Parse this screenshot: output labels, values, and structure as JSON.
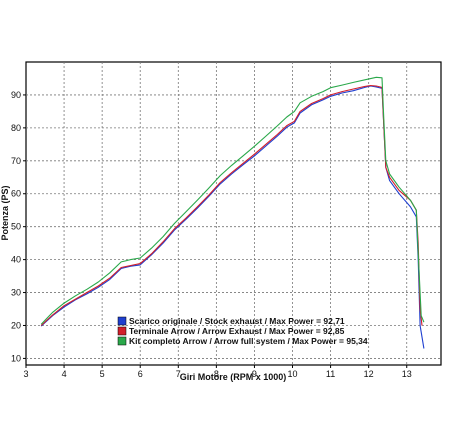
{
  "chart_data": {
    "type": "line",
    "xlabel": "Giri Motore (RPM x 1000)",
    "ylabel": "Potenza (PS)",
    "xlim": [
      3,
      13.9
    ],
    "ylim": [
      8,
      100
    ],
    "xticks": [
      3,
      4,
      5,
      6,
      7,
      8,
      9,
      10,
      11,
      12,
      13
    ],
    "yticks": [
      10,
      20,
      30,
      40,
      50,
      60,
      70,
      80,
      90
    ],
    "grid": true,
    "legend_position": "bottom-left",
    "series": [
      {
        "name": "Scarico originale / Stock exhaust / Max Power = 92,71",
        "color": "#1f3fd0",
        "points": [
          [
            3.4,
            19.8
          ],
          [
            3.7,
            23
          ],
          [
            4,
            25.6
          ],
          [
            4.3,
            27.8
          ],
          [
            4.6,
            29.6
          ],
          [
            4.9,
            31.6
          ],
          [
            5.2,
            34
          ],
          [
            5.5,
            37.3
          ],
          [
            5.75,
            38
          ],
          [
            6,
            38.4
          ],
          [
            6.3,
            41.5
          ],
          [
            6.6,
            45
          ],
          [
            6.9,
            49
          ],
          [
            7.2,
            52.2
          ],
          [
            7.5,
            55.6
          ],
          [
            7.8,
            59.2
          ],
          [
            8.1,
            63
          ],
          [
            8.4,
            66
          ],
          [
            8.7,
            68.8
          ],
          [
            9,
            71.5
          ],
          [
            9.3,
            74.5
          ],
          [
            9.6,
            77.5
          ],
          [
            9.85,
            80.2
          ],
          [
            10.05,
            81.5
          ],
          [
            10.2,
            84.5
          ],
          [
            10.5,
            87
          ],
          [
            10.8,
            88.5
          ],
          [
            11,
            89.6
          ],
          [
            11.3,
            90.6
          ],
          [
            11.6,
            91.3
          ],
          [
            11.9,
            92.3
          ],
          [
            12.05,
            92.71
          ],
          [
            12.2,
            92.4
          ],
          [
            12.35,
            92
          ],
          [
            12.4,
            80
          ],
          [
            12.45,
            68
          ],
          [
            12.55,
            64
          ],
          [
            12.8,
            60
          ],
          [
            13.1,
            56
          ],
          [
            13.25,
            53
          ],
          [
            13.3,
            40
          ],
          [
            13.35,
            20
          ],
          [
            13.45,
            13
          ]
        ]
      },
      {
        "name": "Terminale Arrow / Arrow Exhaust / Max Power = 92,85",
        "color": "#d21f2b",
        "points": [
          [
            3.4,
            20
          ],
          [
            3.7,
            23.2
          ],
          [
            4,
            26
          ],
          [
            4.3,
            28
          ],
          [
            4.6,
            30
          ],
          [
            4.9,
            32
          ],
          [
            5.2,
            34.4
          ],
          [
            5.5,
            37.6
          ],
          [
            5.75,
            38.2
          ],
          [
            6,
            38.8
          ],
          [
            6.3,
            41.8
          ],
          [
            6.6,
            45.4
          ],
          [
            6.9,
            49.4
          ],
          [
            7.2,
            52.6
          ],
          [
            7.5,
            56
          ],
          [
            7.8,
            59.6
          ],
          [
            8.1,
            63.4
          ],
          [
            8.4,
            66.4
          ],
          [
            8.7,
            69.2
          ],
          [
            9,
            72
          ],
          [
            9.3,
            75
          ],
          [
            9.6,
            78
          ],
          [
            9.85,
            80.7
          ],
          [
            10.05,
            82
          ],
          [
            10.2,
            85
          ],
          [
            10.5,
            87.4
          ],
          [
            10.8,
            88.9
          ],
          [
            11,
            90
          ],
          [
            11.3,
            91
          ],
          [
            11.6,
            91.8
          ],
          [
            11.9,
            92.6
          ],
          [
            12.05,
            92.85
          ],
          [
            12.2,
            92.7
          ],
          [
            12.35,
            92.3
          ],
          [
            12.4,
            80
          ],
          [
            12.45,
            68
          ],
          [
            12.55,
            65
          ],
          [
            12.8,
            61
          ],
          [
            13.1,
            58
          ],
          [
            13.25,
            55
          ],
          [
            13.3,
            45
          ],
          [
            13.35,
            25
          ],
          [
            13.4,
            20
          ]
        ]
      },
      {
        "name": "Kit completo Arrow / Arrow full system / Max Power = 95,34",
        "color": "#2aa84a",
        "points": [
          [
            3.4,
            20.4
          ],
          [
            3.7,
            24
          ],
          [
            4,
            26.8
          ],
          [
            4.3,
            29
          ],
          [
            4.6,
            31
          ],
          [
            4.9,
            33.2
          ],
          [
            5.2,
            36
          ],
          [
            5.5,
            39.3
          ],
          [
            5.75,
            40
          ],
          [
            6,
            40.5
          ],
          [
            6.3,
            43.5
          ],
          [
            6.6,
            47
          ],
          [
            6.9,
            51
          ],
          [
            7.2,
            54.5
          ],
          [
            7.5,
            58
          ],
          [
            7.8,
            61.7
          ],
          [
            8.1,
            65.5
          ],
          [
            8.4,
            68.6
          ],
          [
            8.7,
            71.5
          ],
          [
            9,
            74.4
          ],
          [
            9.3,
            77.5
          ],
          [
            9.6,
            80.6
          ],
          [
            9.85,
            83.3
          ],
          [
            10.05,
            85
          ],
          [
            10.2,
            87.6
          ],
          [
            10.5,
            89.6
          ],
          [
            10.8,
            91
          ],
          [
            11,
            92.2
          ],
          [
            11.3,
            93
          ],
          [
            11.6,
            93.8
          ],
          [
            11.9,
            94.6
          ],
          [
            12.2,
            95.34
          ],
          [
            12.35,
            95.2
          ],
          [
            12.4,
            82
          ],
          [
            12.45,
            70
          ],
          [
            12.55,
            66
          ],
          [
            12.8,
            62
          ],
          [
            13.1,
            58
          ],
          [
            13.25,
            55
          ],
          [
            13.3,
            42
          ],
          [
            13.38,
            23
          ],
          [
            13.45,
            21
          ]
        ]
      }
    ]
  }
}
